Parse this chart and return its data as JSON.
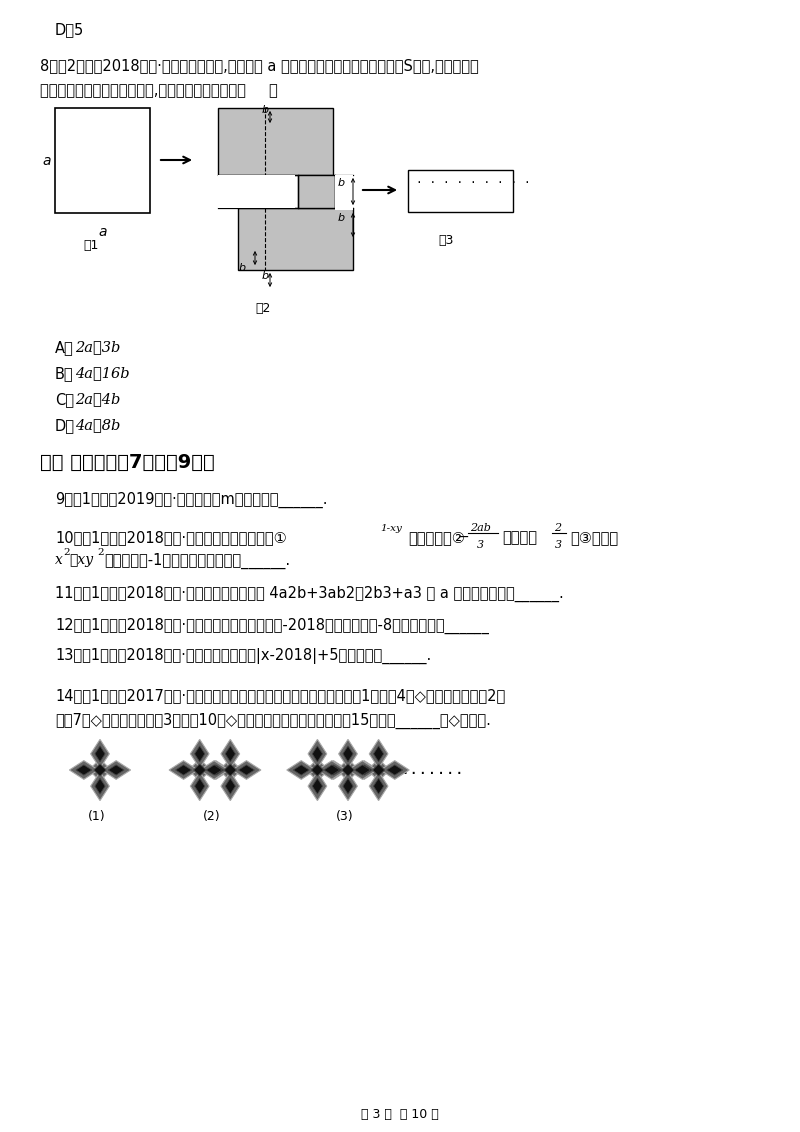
{
  "bg_color": "#ffffff",
  "line1": "D．5",
  "q8_line1": "8．（2分）（2018七上·金华期中）如图,将边长为 a 的正方形剪去两个小长方形得到S图案,再将这两个",
  "q8_line2": "小长方形拼成一个新的长力形,求新的长方形的周长（     ）",
  "fig1_label": "图1",
  "fig2_label": "图2",
  "fig3_label": "图3",
  "optA": "A．2a－3b",
  "optB": "B．4a－16b",
  "optC": "C．2a－4b",
  "optD": "D．4a－8b",
  "sec2_title": "二、 填空题（共7题；共9分）",
  "q9": "9．（1分）（2019七上·道外期末）m的相反数是______.",
  "q10_pre": "10．（1分）（2018七上·通化期中）下列说法：①",
  "q10_mid1": "是多项式；②",
  "q10_mid2": "的系数是",
  "q10_mid3": "；③多项式",
  "q10_line2_pre": "的常数项是-1；其中正确的序号是______.",
  "q11": "11．（1分）（2018七上·唐河期末）将代数式 4a2b+3ab2－2b3+a3 按 a 的升幂排列的是______.",
  "q12": "12．（1分）（2018七上·云梦月考）数轴上表示数-2018的点与表示数-8的点的距离为______",
  "q13": "13．（1分）（2018七上·灌阳期中）代数式|x-2018|+5的最小值是______.",
  "q14_line1": "14．（1分）（2017七上·天门期中）下图是一组有规律的图案，图案（1）是由4个◇组成的，图案（2）",
  "q14_line2": "是由7个◇组成的，图案（3）是由10个◇组成的，以此类推，则图案（15）是由______个◇组成的.",
  "p1_label": "(1)",
  "p2_label": "(2)",
  "p3_label": "(3)",
  "footer": "第 3 页  共 10 页",
  "gray": "#c0c0c0",
  "dark_gray": "#888888"
}
